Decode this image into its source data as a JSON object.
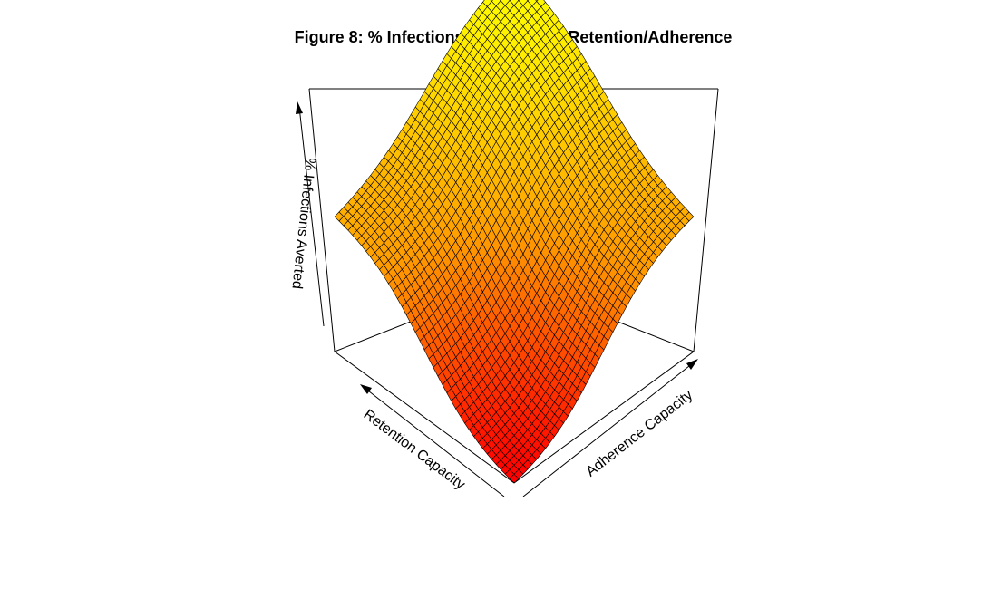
{
  "chart_data": {
    "type": "surface3d",
    "title": "Figure 8: % Infections Averted 3D - Retention/Adherence",
    "xlabel": "Retention Capacity",
    "ylabel": "Adherence Capacity",
    "zlabel": "% Infections Averted",
    "grid_size": 40,
    "surface": {
      "shape": "product of smooth sigmoid ramps in retention and adherence capacity",
      "corner_low": 0.0,
      "edge_mid": 0.6,
      "corner_high": 1.0
    },
    "colors": {
      "low": "#ff0000",
      "mid": "#ff9900",
      "high": "#ffff00",
      "mesh": "#000000"
    }
  }
}
